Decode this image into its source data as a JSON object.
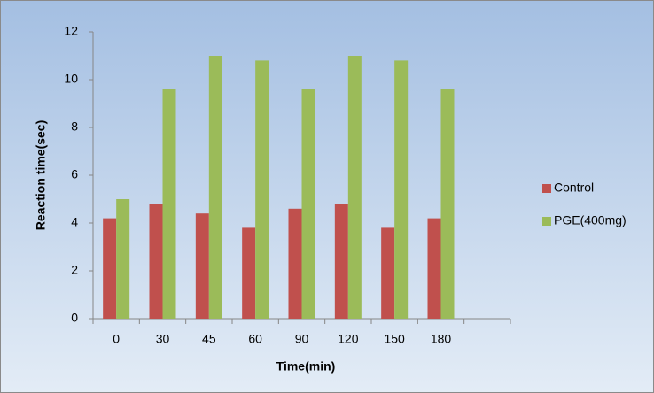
{
  "chart_data": {
    "type": "bar",
    "x_label": "Time(min)",
    "y_label": "Reaction time(sec)",
    "categories": [
      "0",
      "30",
      "45",
      "60",
      "90",
      "120",
      "150",
      "180",
      null
    ],
    "series": [
      {
        "name": "Control",
        "color": "#c0504d",
        "values": [
          4.2,
          4.8,
          4.4,
          3.8,
          4.6,
          4.8,
          3.8,
          4.2,
          null
        ]
      },
      {
        "name": "PGE(400mg)",
        "color": "#9bbb59",
        "values": [
          5,
          9.6,
          11,
          10.8,
          9.6,
          11,
          10.8,
          9.6,
          null
        ]
      }
    ],
    "ylim": [
      0,
      12
    ],
    "yticks": [
      0,
      2,
      4,
      6,
      8,
      10,
      12
    ],
    "legend": "right",
    "grid": false
  }
}
